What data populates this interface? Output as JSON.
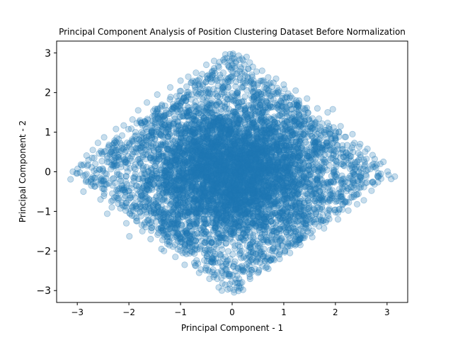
{
  "chart_data": {
    "type": "scatter",
    "title": "Principal Component Analysis of Position Clustering Dataset Before Normalization",
    "xlabel": "Principal Component - 1",
    "ylabel": "Principal Component - 2",
    "xlim": [
      -3.4,
      3.4
    ],
    "ylim": [
      -3.3,
      3.3
    ],
    "xticks": [
      -3,
      -2,
      -1,
      0,
      1,
      2,
      3
    ],
    "yticks": [
      -3,
      -2,
      -1,
      0,
      1,
      2,
      3
    ],
    "xtick_labels": [
      "−3",
      "−2",
      "−1",
      "0",
      "1",
      "2",
      "3"
    ],
    "ytick_labels": [
      "−3",
      "−2",
      "−1",
      "0",
      "1",
      "2",
      "3"
    ],
    "grid": false,
    "legend": "none",
    "marker_color": "#1f77b4",
    "marker_alpha": 0.25,
    "series": [
      {
        "points": [
          [
            -3.13,
            -0.19
          ],
          [
            -3.0,
            -0.04
          ],
          [
            -2.93,
            0.18
          ],
          [
            -2.88,
            -0.5
          ],
          [
            -2.82,
            0.41
          ],
          [
            -2.7,
            0.55
          ],
          [
            -2.6,
            0.73
          ],
          [
            -2.55,
            -0.7
          ],
          [
            -2.48,
            0.87
          ],
          [
            -2.42,
            -1.06
          ],
          [
            -2.33,
            -0.9
          ],
          [
            -2.25,
            1.08
          ],
          [
            -2.1,
            1.17
          ],
          [
            -2.05,
            -1.3
          ],
          [
            -1.99,
            -1.63
          ],
          [
            -1.93,
            1.32
          ],
          [
            -1.82,
            1.55
          ],
          [
            -1.74,
            -1.5
          ],
          [
            -1.65,
            1.75
          ],
          [
            -1.58,
            -1.7
          ],
          [
            -1.45,
            1.95
          ],
          [
            -1.37,
            -1.95
          ],
          [
            -1.32,
            -2.0
          ],
          [
            -1.2,
            2.13
          ],
          [
            -1.1,
            -2.15
          ],
          [
            -1.0,
            2.3
          ],
          [
            -0.92,
            -2.35
          ],
          [
            -0.85,
            2.4
          ],
          [
            -0.7,
            2.5
          ],
          [
            -0.64,
            -2.55
          ],
          [
            -0.5,
            2.7
          ],
          [
            -0.44,
            -2.7
          ],
          [
            -0.35,
            2.8
          ],
          [
            -0.26,
            -2.92
          ],
          [
            -0.2,
            -3.0
          ],
          [
            -0.1,
            2.87
          ],
          [
            -0.04,
            2.97
          ],
          [
            0.0,
            2.7
          ],
          [
            0.06,
            -2.8
          ],
          [
            0.12,
            -3.01
          ],
          [
            0.21,
            -2.98
          ],
          [
            0.28,
            2.9
          ],
          [
            0.4,
            2.65
          ],
          [
            0.5,
            -2.55
          ],
          [
            0.58,
            2.55
          ],
          [
            0.7,
            -2.45
          ],
          [
            0.85,
            2.35
          ],
          [
            0.92,
            -2.2
          ],
          [
            1.0,
            2.2
          ],
          [
            1.12,
            -2.05
          ],
          [
            1.23,
            2.05
          ],
          [
            1.32,
            -1.85
          ],
          [
            1.45,
            1.85
          ],
          [
            1.55,
            -1.65
          ],
          [
            1.65,
            1.6
          ],
          [
            1.78,
            -1.43
          ],
          [
            1.85,
            1.5
          ],
          [
            1.95,
            1.58
          ],
          [
            2.05,
            -1.2
          ],
          [
            2.1,
            1.15
          ],
          [
            2.25,
            -0.98
          ],
          [
            2.33,
            0.95
          ],
          [
            2.42,
            -0.82
          ],
          [
            2.48,
            0.7
          ],
          [
            2.55,
            -0.72
          ],
          [
            2.62,
            0.58
          ],
          [
            2.72,
            0.42
          ],
          [
            2.8,
            0.18
          ],
          [
            2.85,
            -0.1
          ],
          [
            2.93,
            0.25
          ],
          [
            3.03,
            -0.08
          ],
          [
            3.08,
            -0.18
          ],
          [
            3.15,
            -0.12
          ],
          [
            2.7,
            -0.48
          ],
          [
            2.55,
            0.3
          ],
          [
            -2.65,
            0.2
          ],
          [
            -2.7,
            -0.3
          ],
          [
            -2.35,
            0.5
          ],
          [
            -2.2,
            -0.55
          ],
          [
            -2.5,
            0.05
          ]
        ]
      }
    ],
    "density_model": "Dense blob of several thousand points roughly filling a diamond |x| + |y| <= 3.1, densest in the center"
  }
}
